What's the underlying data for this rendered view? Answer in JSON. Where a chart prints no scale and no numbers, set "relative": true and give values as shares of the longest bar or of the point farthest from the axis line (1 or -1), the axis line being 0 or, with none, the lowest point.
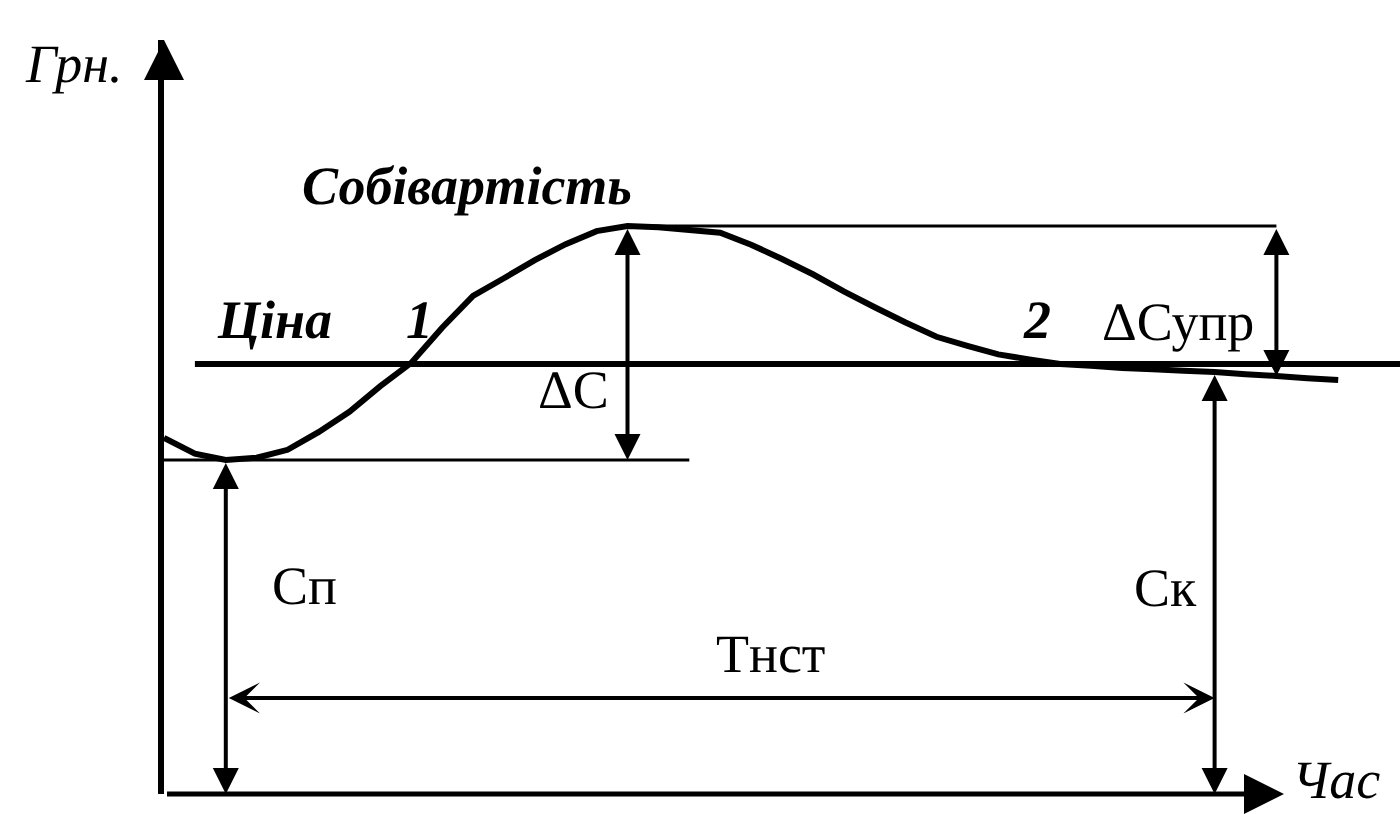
{
  "chart_data": {
    "type": "line",
    "relative": true,
    "xlabel": "Час",
    "ylabel": "Грн.",
    "categories": [
      null,
      null,
      null,
      null,
      null,
      null,
      null,
      null,
      null,
      null,
      null,
      null,
      null,
      null,
      null,
      null,
      null,
      null,
      null,
      null,
      null,
      null,
      null,
      null,
      null,
      null,
      null,
      null,
      null,
      null,
      null,
      null,
      null,
      null,
      null,
      null,
      null,
      null,
      null,
      null,
      null
    ],
    "series": [
      {
        "name": "Собівартість",
        "color": "#000000",
        "values": [
          0.627,
          0.599,
          0.588,
          0.592,
          0.606,
          0.637,
          0.673,
          0.718,
          0.759,
          0.821,
          0.877,
          0.908,
          0.94,
          0.968,
          0.991,
          1.0,
          0.998,
          0.993,
          0.988,
          0.967,
          0.942,
          0.915,
          0.885,
          0.857,
          0.83,
          0.805,
          0.789,
          0.774,
          0.765,
          0.757,
          0.754,
          0.75,
          0.748,
          0.745,
          0.743,
          0.739,
          0.736,
          0.732,
          0.729,
          null,
          null
        ]
      },
      {
        "name": "Ціна",
        "color": "#000000",
        "values": [
          null,
          0.757,
          0.757,
          0.757,
          0.757,
          0.757,
          0.757,
          0.757,
          0.757,
          0.757,
          0.757,
          0.757,
          0.757,
          0.757,
          0.757,
          0.757,
          0.757,
          0.757,
          0.757,
          0.757,
          0.757,
          0.757,
          0.757,
          0.757,
          0.757,
          0.757,
          0.757,
          0.757,
          0.757,
          0.757,
          0.757,
          0.757,
          0.757,
          0.757,
          0.757,
          0.757,
          0.757,
          0.757,
          0.757,
          0.757,
          0.757
        ]
      },
      {
        "color": "#000000",
        "values": [
          0.588,
          0.588,
          0.588,
          0.588,
          0.588,
          0.588,
          0.588,
          0.588,
          0.588,
          0.588,
          0.588,
          0.588,
          0.588,
          0.588,
          0.588,
          0.588,
          0.588,
          0.588,
          null,
          null,
          null,
          null,
          null,
          null,
          null,
          null,
          null,
          null,
          null,
          null,
          null,
          null,
          null,
          null,
          null,
          null,
          null,
          null,
          null,
          null,
          null
        ]
      },
      {
        "color": "#000000",
        "values": [
          null,
          null,
          null,
          null,
          null,
          null,
          null,
          null,
          null,
          null,
          null,
          null,
          null,
          null,
          null,
          1.0,
          1.0,
          1.0,
          1.0,
          1.0,
          1.0,
          1.0,
          1.0,
          1.0,
          1.0,
          1.0,
          1.0,
          1.0,
          1.0,
          1.0,
          1.0,
          1.0,
          1.0,
          1.0,
          1.0,
          1.0,
          1.0,
          null,
          null,
          null,
          null
        ]
      }
    ],
    "annotations": [
      "1",
      "2",
      "ΔС",
      "ΔСупр",
      "Сп",
      "Тнст",
      "Ск"
    ]
  }
}
